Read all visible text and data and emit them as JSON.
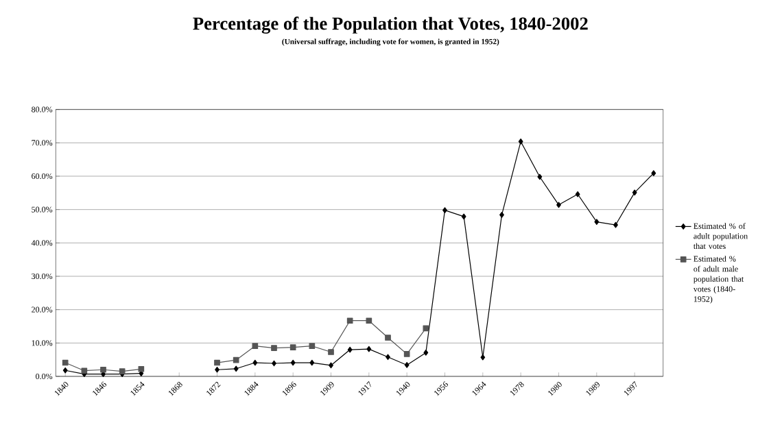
{
  "chart_data": {
    "type": "line",
    "title": "Percentage of the Population that Votes, 1840-2002",
    "subtitle": "(Universal suffrage, including vote for women, is granted in 1952)",
    "categories": [
      "1840",
      null,
      "1846",
      null,
      "1854",
      null,
      "1868",
      null,
      "1872",
      null,
      "1884",
      null,
      "1896",
      null,
      "1909",
      null,
      "1917",
      null,
      "1940",
      null,
      "1956",
      null,
      "1964",
      null,
      "1978",
      null,
      "1980",
      null,
      "1989",
      null,
      "1997",
      null
    ],
    "series": [
      {
        "name": "Estimated % of adult population that votes",
        "color": "#000000",
        "marker": "diamond",
        "values": [
          1.8,
          0.7,
          0.7,
          0.7,
          0.9,
          null,
          null,
          null,
          2.0,
          2.3,
          4.1,
          3.9,
          4.1,
          4.1,
          3.3,
          8.0,
          8.2,
          5.8,
          3.4,
          7.1,
          49.8,
          47.9,
          5.7,
          48.4,
          70.4,
          59.8,
          51.4,
          54.6,
          46.3,
          45.4,
          55.1,
          60.9
        ]
      },
      {
        "name": "Estimated % of adult male population that votes (1840-1952)",
        "color": "#555555",
        "marker": "square",
        "values": [
          4.1,
          1.7,
          2.0,
          1.5,
          2.2,
          null,
          null,
          null,
          4.1,
          4.9,
          9.1,
          8.5,
          8.7,
          9.1,
          7.3,
          16.7,
          16.7,
          11.6,
          6.7,
          14.4,
          null,
          null,
          null,
          null,
          null,
          null,
          null,
          null,
          null,
          null,
          null,
          null
        ]
      }
    ],
    "ylim": [
      0,
      80
    ],
    "yticks": [
      {
        "value": 0,
        "label": "0.0%"
      },
      {
        "value": 10,
        "label": "10.0%"
      },
      {
        "value": 20,
        "label": "20.0%"
      },
      {
        "value": 30,
        "label": "30.0%"
      },
      {
        "value": 40,
        "label": "40.0%"
      },
      {
        "value": 50,
        "label": "50.0%"
      },
      {
        "value": 60,
        "label": "60.0%"
      },
      {
        "value": 70,
        "label": "70.0%"
      },
      {
        "value": 80,
        "label": "80.0%"
      }
    ],
    "grid": "y",
    "legend": "right"
  }
}
